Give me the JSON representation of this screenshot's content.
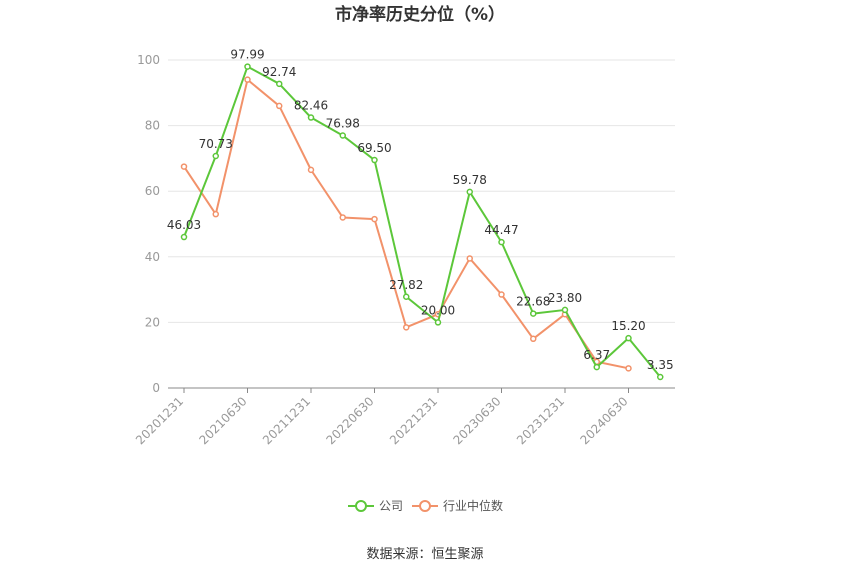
{
  "chart_data": {
    "type": "line",
    "title": "市净率历史分位（%）",
    "xlabel": "",
    "ylabel": "",
    "ylim": [
      0,
      100
    ],
    "yticks": [
      0,
      20,
      40,
      60,
      80,
      100
    ],
    "grid": true,
    "legend_position": "bottom",
    "categories": [
      "20201231",
      "20210331",
      "20210630",
      "20210930",
      "20211231",
      "20220331",
      "20220630",
      "20220930",
      "20221231",
      "20230331",
      "20230630",
      "20230930",
      "20231231",
      "20240331",
      "20240630",
      "20240930"
    ],
    "xtick_labels": [
      "20201231",
      "20210630",
      "20211231",
      "20220630",
      "20221231",
      "20230630",
      "20231231",
      "20240630"
    ],
    "series": [
      {
        "name": "公司",
        "color": "#5cc73a",
        "values": [
          46.03,
          70.73,
          97.99,
          92.74,
          82.46,
          76.98,
          69.5,
          27.82,
          20.0,
          59.78,
          44.47,
          22.68,
          23.8,
          6.37,
          15.2,
          3.35
        ],
        "labels": [
          "46.03",
          "70.73",
          "97.99",
          "92.74",
          "82.46",
          "76.98",
          "69.50",
          "27.82",
          "20.00",
          "59.78",
          "44.47",
          "22.68",
          "23.80",
          "6.37",
          "15.20",
          "3.35"
        ]
      },
      {
        "name": "行业中位数",
        "color": "#f2926a",
        "values": [
          67.5,
          53.0,
          94.0,
          86.0,
          66.5,
          52.0,
          51.5,
          18.5,
          22.5,
          39.5,
          28.5,
          15.0,
          22.5,
          8.0,
          6.0,
          null
        ]
      }
    ],
    "source": "数据来源：恒生聚源"
  }
}
